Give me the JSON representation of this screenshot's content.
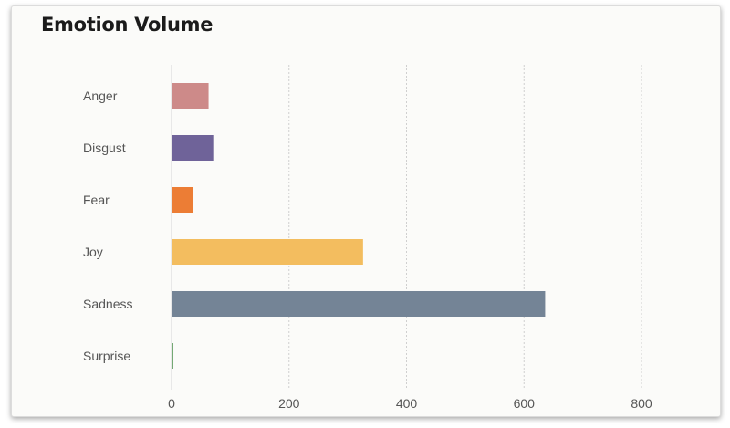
{
  "chart_data": {
    "type": "bar",
    "orientation": "horizontal",
    "title": "Emotion Volume",
    "xlabel": "",
    "ylabel": "",
    "categories": [
      "Anger",
      "Disgust",
      "Fear",
      "Joy",
      "Sadness",
      "Surprise"
    ],
    "values": [
      63,
      71,
      36,
      326,
      636,
      3
    ],
    "colors": [
      "#cd8a89",
      "#6f6399",
      "#ec7d35",
      "#f3bd5f",
      "#748496",
      "#6ba36b"
    ],
    "xlim": [
      0,
      800
    ],
    "xticks": [
      0,
      200,
      400,
      600,
      800
    ],
    "grid": "vertical-dotted",
    "legend": "none"
  }
}
